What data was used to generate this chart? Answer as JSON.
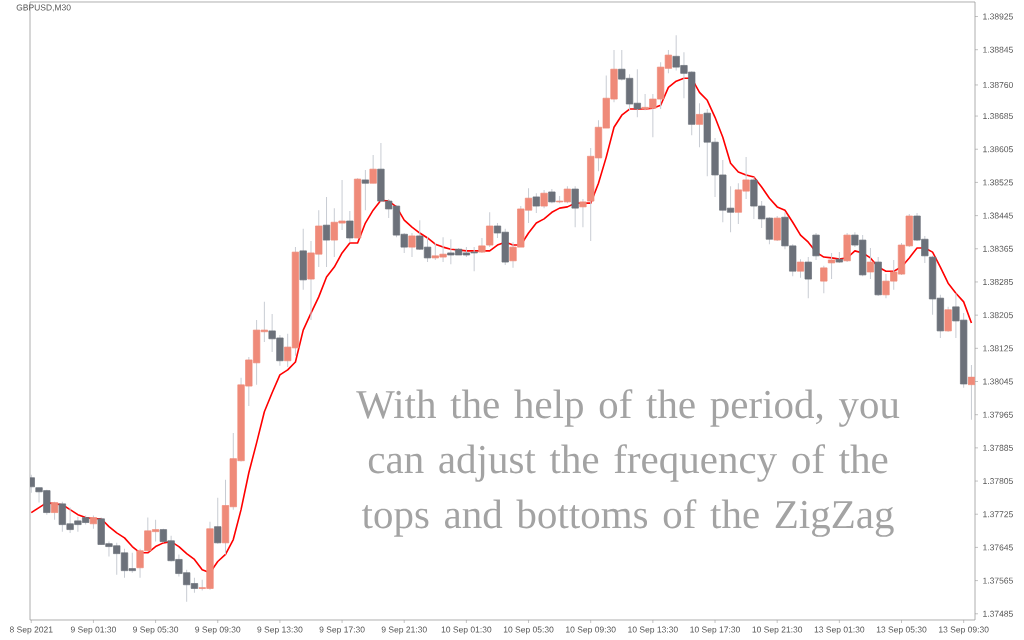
{
  "chart_data": {
    "type": "candlestick",
    "title": "GBPUSD,M30",
    "annotations": [
      "With the help of the period, you can adjust the frequency of the tops and bottoms of the ZigZag"
    ],
    "categories": [
      "8 Sep 2021",
      null,
      null,
      null,
      null,
      null,
      null,
      null,
      "9 Sep 01:30",
      null,
      null,
      null,
      null,
      null,
      null,
      null,
      "9 Sep 05:30",
      null,
      null,
      null,
      null,
      null,
      null,
      null,
      "9 Sep 09:30",
      null,
      null,
      null,
      null,
      null,
      null,
      null,
      "9 Sep 13:30",
      null,
      null,
      null,
      null,
      null,
      null,
      null,
      "9 Sep 17:30",
      null,
      null,
      null,
      null,
      null,
      null,
      null,
      "9 Sep 21:30",
      null,
      null,
      null,
      null,
      null,
      null,
      null,
      "10 Sep 01:30",
      null,
      null,
      null,
      null,
      null,
      null,
      null,
      "10 Sep 05:30",
      null,
      null,
      null,
      null,
      null,
      null,
      null,
      "10 Sep 09:30",
      null,
      null,
      null,
      null,
      null,
      null,
      null,
      "10 Sep 13:30",
      null,
      null,
      null,
      null,
      null,
      null,
      null,
      "10 Sep 17:30",
      null,
      null,
      null,
      null,
      null,
      null,
      null,
      "10 Sep 21:30",
      null,
      null,
      null,
      null,
      null,
      null,
      null,
      "13 Sep 01:30",
      null,
      null,
      null,
      null,
      null,
      null,
      null,
      "13 Sep 05:30",
      null,
      null,
      null,
      null,
      null,
      null,
      null,
      "13 Sep 09:30",
      null
    ],
    "ylim": [
      1.3747,
      1.3896
    ],
    "yticks": [
      1.37485,
      1.37565,
      1.37645,
      1.37725,
      1.37805,
      1.37885,
      1.37965,
      1.38045,
      1.38125,
      1.38205,
      1.38285,
      1.38365,
      1.38445,
      1.38525,
      1.38605,
      1.38685,
      {
        "value": 1.3876,
        "label": "1.38760"
      },
      1.38845,
      1.38925
    ],
    "series": [
      {
        "type": "candlestick",
        "ohlc": [
          [
            1.37813,
            1.3782,
            1.37777,
            1.37791
          ],
          [
            1.37789,
            1.37789,
            1.37753,
            1.37779
          ],
          [
            1.37782,
            1.37784,
            1.37724,
            1.37729
          ],
          [
            1.37729,
            1.37755,
            1.37712,
            1.37753
          ],
          [
            1.3775,
            1.37755,
            1.37683,
            1.377
          ],
          [
            1.37702,
            1.37741,
            1.3768,
            1.37688
          ],
          [
            1.37709,
            1.37719,
            1.37683,
            1.377
          ],
          [
            1.37717,
            1.37722,
            1.377,
            1.37705
          ],
          [
            1.37702,
            1.37722,
            1.3769,
            1.37717
          ],
          [
            1.37714,
            1.37717,
            1.37652,
            1.37652
          ],
          [
            1.37654,
            1.37659,
            1.37623,
            1.37647
          ],
          [
            1.37649,
            1.37656,
            1.37579,
            1.3763
          ],
          [
            1.37632,
            1.37642,
            1.37572,
            1.37589
          ],
          [
            1.37594,
            1.37632,
            1.37584,
            1.37589
          ],
          [
            1.37596,
            1.37642,
            1.37572,
            1.37637
          ],
          [
            1.37637,
            1.37717,
            1.37635,
            1.37685
          ],
          [
            1.37683,
            1.37712,
            1.37659,
            1.37688
          ],
          [
            1.37688,
            1.3769,
            1.37656,
            1.37659
          ],
          [
            1.37661,
            1.37673,
            1.37611,
            1.37613
          ],
          [
            1.37616,
            1.37628,
            1.37575,
            1.37582
          ],
          [
            1.37584,
            1.37591,
            1.37514,
            1.37555
          ],
          [
            1.37558,
            1.37572,
            1.37536,
            1.37546
          ],
          [
            1.37546,
            1.37567,
            1.37541,
            1.37548
          ],
          [
            1.37546,
            1.37707,
            1.37543,
            1.3769
          ],
          [
            1.37695,
            1.37765,
            1.37654,
            1.37656
          ],
          [
            1.37656,
            1.37808,
            1.37628,
            1.37746
          ],
          [
            1.37743,
            1.37921,
            1.37736,
            1.37859
          ],
          [
            1.37854,
            1.38054,
            1.37852,
            1.38037
          ],
          [
            1.38034,
            1.38104,
            1.37986,
            1.38097
          ],
          [
            1.3809,
            1.38193,
            1.38037,
            1.38169
          ],
          [
            1.38165,
            1.38237,
            1.3814,
            1.38169
          ],
          [
            1.38167,
            1.38208,
            1.38116,
            1.38148
          ],
          [
            1.3815,
            1.38157,
            1.38083,
            1.38095
          ],
          [
            1.38095,
            1.3816,
            1.3808,
            1.38128
          ],
          [
            1.38126,
            1.38369,
            1.38107,
            1.38357
          ],
          [
            1.3836,
            1.38413,
            1.38266,
            1.3829
          ],
          [
            1.38292,
            1.38384,
            1.38193,
            1.38355
          ],
          [
            1.38352,
            1.38458,
            1.38321,
            1.3842
          ],
          [
            1.38422,
            1.3849,
            1.38321,
            1.38386
          ],
          [
            1.38386,
            1.38463,
            1.38345,
            1.38429
          ],
          [
            1.38427,
            1.38531,
            1.3841,
            1.38432
          ],
          [
            1.38432,
            1.38456,
            1.38381,
            1.38391
          ],
          [
            1.38391,
            1.38535,
            1.38391,
            1.38533
          ],
          [
            1.38531,
            1.38555,
            1.38458,
            1.38523
          ],
          [
            1.38523,
            1.38591,
            1.38523,
            1.38557
          ],
          [
            1.38557,
            1.3862,
            1.38478,
            1.3848
          ],
          [
            1.3848,
            1.38485,
            1.38439,
            1.38461
          ],
          [
            1.38468,
            1.3847,
            1.38393,
            1.38398
          ],
          [
            1.384,
            1.38403,
            1.38355,
            1.38369
          ],
          [
            1.38369,
            1.38403,
            1.38345,
            1.38396
          ],
          [
            1.38396,
            1.38434,
            1.38362,
            1.38364
          ],
          [
            1.38369,
            1.38393,
            1.38333,
            1.38343
          ],
          [
            1.38343,
            1.38379,
            1.38338,
            1.38348
          ],
          [
            1.38345,
            1.38393,
            1.38333,
            1.38352
          ],
          [
            1.38355,
            1.38388,
            1.38328,
            1.3835
          ],
          [
            1.38364,
            1.38367,
            1.3835,
            1.3835
          ],
          [
            1.38355,
            1.38369,
            1.38345,
            1.3835
          ],
          [
            1.38357,
            1.38369,
            1.38311,
            1.38355
          ],
          [
            1.38357,
            1.38391,
            1.38355,
            1.38372
          ],
          [
            1.38374,
            1.38453,
            1.38369,
            1.3842
          ],
          [
            1.3842,
            1.38427,
            1.38391,
            1.38403
          ],
          [
            1.38405,
            1.38413,
            1.38326,
            1.38333
          ],
          [
            1.38336,
            1.38381,
            1.38319,
            1.38369
          ],
          [
            1.38369,
            1.38468,
            1.38369,
            1.38461
          ],
          [
            1.38458,
            1.38511,
            1.38427,
            1.38487
          ],
          [
            1.3849,
            1.38499,
            1.38451,
            1.38468
          ],
          [
            1.38468,
            1.38507,
            1.38463,
            1.38499
          ],
          [
            1.38502,
            1.38509,
            1.38475,
            1.38478
          ],
          [
            1.38478,
            1.38492,
            1.38475,
            1.3848
          ],
          [
            1.38478,
            1.38516,
            1.38475,
            1.38509
          ],
          [
            1.38509,
            1.38516,
            1.38417,
            1.38463
          ],
          [
            1.38466,
            1.38485,
            1.38417,
            1.38478
          ],
          [
            1.3848,
            1.38608,
            1.38384,
            1.38588
          ],
          [
            1.38584,
            1.38675,
            1.38552,
            1.38658
          ],
          [
            1.38656,
            1.38783,
            1.38656,
            1.38728
          ],
          [
            1.38726,
            1.38844,
            1.38718,
            1.38798
          ],
          [
            1.38798,
            1.38844,
            1.38771,
            1.38774
          ],
          [
            1.38776,
            1.38786,
            1.38699,
            1.38714
          ],
          [
            1.38716,
            1.38798,
            1.38682,
            1.38702
          ],
          [
            1.38702,
            1.38738,
            1.38699,
            1.38706
          ],
          [
            1.38704,
            1.38738,
            1.38634,
            1.38726
          ],
          [
            1.38726,
            1.38815,
            1.38702,
            1.38803
          ],
          [
            1.388,
            1.38844,
            1.38788,
            1.38832
          ],
          [
            1.38829,
            1.3888,
            1.38795,
            1.38803
          ],
          [
            1.38807,
            1.38839,
            1.38728,
            1.38788
          ],
          [
            1.38791,
            1.38793,
            1.38639,
            1.38665
          ],
          [
            1.38665,
            1.38716,
            1.3861,
            1.38689
          ],
          [
            1.38692,
            1.38702,
            1.3854,
            1.38622
          ],
          [
            1.38622,
            1.38632,
            1.3849,
            1.38543
          ],
          [
            1.38543,
            1.38579,
            1.38429,
            1.38458
          ],
          [
            1.38463,
            1.38516,
            1.38405,
            1.38453
          ],
          [
            1.38453,
            1.38523,
            1.38425,
            1.38507
          ],
          [
            1.38504,
            1.38586,
            1.38485,
            1.38531
          ],
          [
            1.38531,
            1.38538,
            1.38437,
            1.38468
          ],
          [
            1.38468,
            1.3848,
            1.38415,
            1.38437
          ],
          [
            1.38439,
            1.38441,
            1.38376,
            1.38388
          ],
          [
            1.38386,
            1.38444,
            1.38384,
            1.38439
          ],
          [
            1.38441,
            1.38453,
            1.38364,
            1.38372
          ],
          [
            1.38372,
            1.38376,
            1.38299,
            1.38311
          ],
          [
            1.38311,
            1.3834,
            1.38295,
            1.38333
          ],
          [
            1.38333,
            1.38345,
            1.38246,
            1.38292
          ],
          [
            1.38398,
            1.38403,
            1.38338,
            1.38348
          ],
          [
            1.38287,
            1.38324,
            1.38258,
            1.38319
          ],
          [
            1.38331,
            1.38355,
            1.38292,
            1.38338
          ],
          [
            1.3834,
            1.38357,
            1.38331,
            1.38333
          ],
          [
            1.38336,
            1.38403,
            1.38333,
            1.38398
          ],
          [
            1.38398,
            1.38405,
            1.38369,
            1.38374
          ],
          [
            1.38386,
            1.38398,
            1.38299,
            1.38302
          ],
          [
            1.38309,
            1.38367,
            1.38292,
            1.38333
          ],
          [
            1.38333,
            1.38345,
            1.38251,
            1.38254
          ],
          [
            1.38254,
            1.38304,
            1.38246,
            1.38287
          ],
          [
            1.38287,
            1.38338,
            1.38266,
            1.38309
          ],
          [
            1.38304,
            1.38379,
            1.38302,
            1.38374
          ],
          [
            1.38372,
            1.38449,
            1.38369,
            1.38444
          ],
          [
            1.38444,
            1.38451,
            1.38384,
            1.38386
          ],
          [
            1.38388,
            1.38396,
            1.38331,
            1.38348
          ],
          [
            1.38345,
            1.38348,
            1.38206,
            1.38244
          ],
          [
            1.38246,
            1.38254,
            1.3815,
            1.38167
          ],
          [
            1.38167,
            1.38225,
            1.38165,
            1.38218
          ],
          [
            1.38225,
            1.38258,
            1.3815,
            1.38191
          ],
          [
            1.38193,
            1.3821,
            1.3803,
            1.38039
          ],
          [
            1.38037,
            1.38085,
            1.37953,
            1.38056
          ]
        ],
        "colors": [
          "#6c717a",
          "#6c717a",
          "#6c717a",
          "#ef8a79",
          "#6c717a",
          "#6c717a",
          "#6c717a",
          "#6c717a",
          "#ef8a79",
          "#6c717a",
          "#6c717a",
          "#6c717a",
          "#6c717a",
          "#6c717a",
          "#ef8a79",
          "#ef8a79",
          "#ef8a79",
          "#6c717a",
          "#6c717a",
          "#6c717a",
          "#6c717a",
          "#6c717a",
          "#ef8a79",
          "#ef8a79",
          "#6c717a",
          "#ef8a79",
          "#ef8a79",
          "#ef8a79",
          "#ef8a79",
          "#ef8a79",
          "#ef8a79",
          "#6c717a",
          "#6c717a",
          "#ef8a79",
          "#ef8a79",
          "#6c717a",
          "#ef8a79",
          "#ef8a79",
          "#6c717a",
          "#ef8a79",
          "#ef8a79",
          "#6c717a",
          "#ef8a79",
          "#6c717a",
          "#ef8a79",
          "#6c717a",
          "#6c717a",
          "#6c717a",
          "#6c717a",
          "#ef8a79",
          "#6c717a",
          "#6c717a",
          "#ef8a79",
          "#ef8a79",
          "#6c717a",
          "#6c717a",
          "#6c717a",
          "#6c717a",
          "#ef8a79",
          "#ef8a79",
          "#6c717a",
          "#6c717a",
          "#ef8a79",
          "#ef8a79",
          "#ef8a79",
          "#6c717a",
          "#ef8a79",
          "#6c717a",
          "#ef8a79",
          "#ef8a79",
          "#6c717a",
          "#ef8a79",
          "#ef8a79",
          "#ef8a79",
          "#ef8a79",
          "#ef8a79",
          "#6c717a",
          "#6c717a",
          "#6c717a",
          "#ef8a79",
          "#ef8a79",
          "#ef8a79",
          "#ef8a79",
          "#6c717a",
          "#6c717a",
          "#6c717a",
          "#ef8a79",
          "#6c717a",
          "#6c717a",
          "#6c717a",
          "#6c717a",
          "#ef8a79",
          "#ef8a79",
          "#6c717a",
          "#6c717a",
          "#6c717a",
          "#ef8a79",
          "#6c717a",
          "#6c717a",
          "#ef8a79",
          "#6c717a",
          "#6c717a",
          "#ef8a79",
          "#ef8a79",
          "#6c717a",
          "#ef8a79",
          "#6c717a",
          "#6c717a",
          "#ef8a79",
          "#6c717a",
          "#ef8a79",
          "#ef8a79",
          "#ef8a79",
          "#ef8a79",
          "#6c717a",
          "#6c717a",
          "#6c717a",
          "#6c717a",
          "#ef8a79",
          "#6c717a",
          "#6c717a",
          "#ef8a79"
        ]
      },
      {
        "type": "line",
        "color": "#ff0000",
        "values": [
          1.37729,
          1.37741,
          1.37753,
          1.3775,
          1.37748,
          1.37736,
          1.37724,
          1.37717,
          1.37714,
          1.37714,
          1.37695,
          1.3768,
          1.37668,
          1.37647,
          1.37632,
          1.37632,
          1.37647,
          1.37656,
          1.37659,
          1.37647,
          1.3763,
          1.37616,
          1.37591,
          1.37584,
          1.37611,
          1.37628,
          1.37664,
          1.37736,
          1.37825,
          1.37897,
          1.37972,
          1.38018,
          1.38061,
          1.38073,
          1.38092,
          1.38169,
          1.3821,
          1.38249,
          1.38297,
          1.38321,
          1.38355,
          1.38379,
          1.38379,
          1.38427,
          1.38458,
          1.38482,
          1.3848,
          1.38466,
          1.38434,
          1.38417,
          1.38403,
          1.38391,
          1.38376,
          1.38369,
          1.38364,
          1.38362,
          1.3836,
          1.3836,
          1.3836,
          1.3836,
          1.38374,
          1.38381,
          1.38374,
          1.38374,
          1.38403,
          1.38427,
          1.38437,
          1.38453,
          1.38463,
          1.38466,
          1.38475,
          1.38475,
          1.38475,
          1.38523,
          1.38586,
          1.38658,
          1.38687,
          1.38702,
          1.38702,
          1.38702,
          1.38704,
          1.38711,
          1.38754,
          1.38769,
          1.38776,
          1.38776,
          1.38742,
          1.38723,
          1.38682,
          1.38634,
          1.38571,
          1.3855,
          1.38543,
          1.38538,
          1.38514,
          1.38487,
          1.38466,
          1.38458,
          1.38429,
          1.38398,
          1.38381,
          1.38357,
          1.38345,
          1.38343,
          1.3834,
          1.38343,
          1.3836,
          1.38355,
          1.38343,
          1.38321,
          1.38311,
          1.38311,
          1.38321,
          1.38343,
          1.38367,
          1.38367,
          1.38357,
          1.38321,
          1.38282,
          1.38258,
          1.38237,
          1.38186
        ]
      }
    ]
  }
}
